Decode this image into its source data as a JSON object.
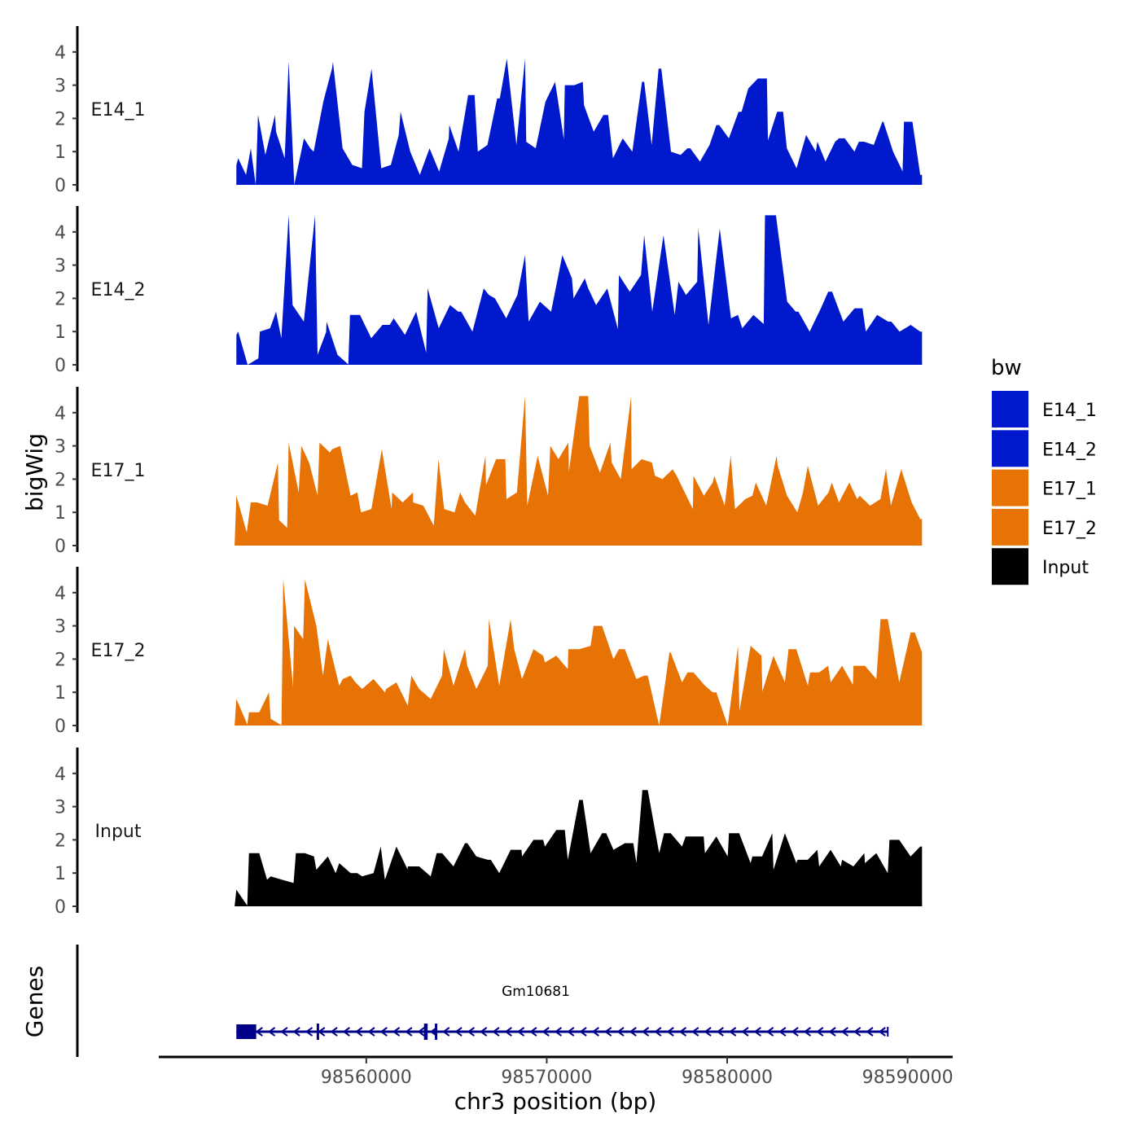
{
  "chart_data": {
    "type": "area",
    "title": "",
    "ylabel": "bigWig",
    "genes_label": "Genes",
    "xlabel": "chr3 position (bp)",
    "xlim": [
      98548500,
      98592500
    ],
    "data_xrange": [
      98552800,
      98590800
    ],
    "ylim": [
      0,
      4.8
    ],
    "y_ticks": [
      0,
      1,
      2,
      3,
      4
    ],
    "x_ticks": [
      98560000,
      98570000,
      98580000,
      98590000
    ],
    "x_tick_labels": [
      "98560000",
      "98570000",
      "98580000",
      "98590000"
    ],
    "legend": {
      "title": "bw",
      "position": "right",
      "entries": [
        {
          "label": "E14_1",
          "color": "#0019CD"
        },
        {
          "label": "E14_2",
          "color": "#0019CD"
        },
        {
          "label": "E17_1",
          "color": "#E87305"
        },
        {
          "label": "E17_2",
          "color": "#E87305"
        },
        {
          "label": "Input",
          "color": "#000000"
        }
      ]
    },
    "series": [
      {
        "name": "E14_1",
        "color": "#0019CD",
        "peaks": [
          [
            98552900,
            0.8
          ],
          [
            98553600,
            1.1
          ],
          [
            98554000,
            2.1
          ],
          [
            98555000,
            1.6
          ],
          [
            98555700,
            3.7
          ],
          [
            98556900,
            1.1
          ],
          [
            98558100,
            3.5
          ],
          [
            98559900,
            2.2
          ],
          [
            98561800,
            1.5
          ],
          [
            98564600,
            1.8
          ],
          [
            98566000,
            2.7
          ],
          [
            98567400,
            2.6
          ],
          [
            98568800,
            3.8
          ],
          [
            98571000,
            3.0
          ],
          [
            98572000,
            3.1
          ],
          [
            98573400,
            2.1
          ],
          [
            98575400,
            3.1
          ],
          [
            98576200,
            3.5
          ],
          [
            98577800,
            1.1
          ],
          [
            98579400,
            1.8
          ],
          [
            98580800,
            2.2
          ],
          [
            98582200,
            3.2
          ],
          [
            98583100,
            2.2
          ],
          [
            98585000,
            1.3
          ],
          [
            98586200,
            1.4
          ],
          [
            98587300,
            1.3
          ],
          [
            98588600,
            1.9
          ],
          [
            98589800,
            1.9
          ],
          [
            98590700,
            0.3
          ]
        ],
        "values": [
          0.6,
          0.3,
          0.0,
          0.9,
          2.1,
          0.8,
          0.0,
          1.4,
          1.0,
          2.5,
          3.7,
          1.1,
          0.6,
          0.5,
          3.5,
          0.5,
          0.6,
          2.2,
          1.0,
          0.3,
          1.1,
          0.4,
          1.4,
          1.0,
          2.7,
          1.0,
          1.2,
          2.6,
          3.8,
          1.2,
          1.3,
          1.1,
          2.5,
          3.1,
          1.2,
          3.0,
          2.4,
          1.6,
          2.1,
          0.8,
          1.4,
          1.0,
          3.1,
          1.2,
          3.5,
          1.0,
          0.9,
          1.1,
          0.7,
          1.2,
          1.8,
          1.4,
          2.2,
          2.9,
          3.2,
          1.3,
          2.2,
          1.1,
          0.5,
          1.5,
          1.0,
          0.7,
          1.3,
          1.4,
          1.0,
          1.3,
          1.2,
          1.9,
          1.0,
          0.4,
          1.9,
          0.3
        ]
      },
      {
        "name": "E14_2",
        "color": "#0019CD",
        "peaks": [
          [
            98552900,
            1.0
          ],
          [
            98554100,
            1.0
          ],
          [
            98555000,
            1.6
          ],
          [
            98555700,
            4.5
          ],
          [
            98557300,
            0.3
          ],
          [
            98557800,
            1.3
          ],
          [
            98559100,
            1.5
          ],
          [
            98561300,
            1.2
          ],
          [
            98563400,
            2.3
          ],
          [
            98565100,
            1.6
          ],
          [
            98566800,
            2.1
          ],
          [
            98568800,
            3.3
          ],
          [
            98571400,
            2.6
          ],
          [
            98572300,
            2.3
          ],
          [
            98574000,
            2.7
          ],
          [
            98575400,
            3.9
          ],
          [
            98577300,
            2.5
          ],
          [
            98578400,
            4.1
          ],
          [
            98580600,
            1.5
          ],
          [
            98582100,
            4.5
          ],
          [
            98583800,
            1.6
          ],
          [
            98585600,
            2.2
          ],
          [
            98587500,
            1.7
          ],
          [
            98589100,
            1.3
          ],
          [
            98590700,
            1.0
          ]
        ],
        "values": [
          0.9,
          0.0,
          0.2,
          1.1,
          0.8,
          1.8,
          1.3,
          4.5,
          1.0,
          0.3,
          0.0,
          1.5,
          0.8,
          1.2,
          1.4,
          0.9,
          1.6,
          0.2,
          1.1,
          1.8,
          1.6,
          1.0,
          2.3,
          2.0,
          1.4,
          2.1,
          1.3,
          1.9,
          1.6,
          3.3,
          2.0,
          2.6,
          1.8,
          2.3,
          1.0,
          2.2,
          2.7,
          1.6,
          3.9,
          1.5,
          2.1,
          2.5,
          1.2,
          4.1,
          1.4,
          1.1,
          1.5,
          1.2,
          4.5,
          1.9,
          1.6,
          1.0,
          1.7,
          2.2,
          1.3,
          1.7,
          1.0,
          1.5,
          1.3,
          1.0,
          1.2,
          1.0
        ]
      },
      {
        "name": "E17_1",
        "color": "#E87305",
        "peaks": [
          [
            98552800,
            1.5
          ],
          [
            98553600,
            1.3
          ],
          [
            98555100,
            2.5
          ],
          [
            98555700,
            3.1
          ],
          [
            98556400,
            3.0
          ],
          [
            98557300,
            1.5
          ],
          [
            98558100,
            2.9
          ],
          [
            98559500,
            1.6
          ],
          [
            98561400,
            1.1
          ],
          [
            98562600,
            1.3
          ],
          [
            98564000,
            2.6
          ],
          [
            98565200,
            1.6
          ],
          [
            98566600,
            2.7
          ],
          [
            98567700,
            2.6
          ],
          [
            98568800,
            4.5
          ],
          [
            98570200,
            3.0
          ],
          [
            98571200,
            3.1
          ],
          [
            98572300,
            4.5
          ],
          [
            98573600,
            2.5
          ],
          [
            98574700,
            2.3
          ],
          [
            98576000,
            2.1
          ],
          [
            98577200,
            2.1
          ],
          [
            98578100,
            1.1
          ],
          [
            98579200,
            1.9
          ],
          [
            98580200,
            2.7
          ],
          [
            98581400,
            1.5
          ],
          [
            98582800,
            2.4
          ],
          [
            98584200,
            1.6
          ],
          [
            98585800,
            1.9
          ],
          [
            98587200,
            1.4
          ],
          [
            98588800,
            2.3
          ],
          [
            98590700,
            0.8
          ]
        ],
        "values": [
          1.5,
          0.4,
          1.3,
          1.2,
          0.8,
          0.5,
          1.6,
          2.5,
          3.1,
          2.8,
          3.0,
          1.5,
          1.0,
          1.1,
          2.9,
          1.6,
          1.3,
          1.6,
          1.2,
          0.6,
          1.1,
          1.0,
          1.3,
          0.9,
          1.8,
          2.6,
          1.4,
          1.6,
          1.2,
          2.7,
          1.5,
          2.6,
          2.2,
          4.5,
          3.0,
          2.2,
          3.1,
          2.0,
          4.5,
          2.6,
          2.5,
          2.0,
          2.3,
          1.7,
          2.1,
          1.5,
          2.1,
          1.2,
          1.1,
          1.4,
          1.9,
          1.2,
          2.7,
          1.5,
          1.0,
          2.4,
          1.2,
          1.6,
          1.3,
          1.9,
          1.5,
          1.2,
          1.4,
          1.2,
          2.3,
          1.3,
          0.8
        ]
      },
      {
        "name": "E17_2",
        "color": "#E87305",
        "peaks": [
          [
            98552800,
            0.8
          ],
          [
            98553500,
            0.4
          ],
          [
            98554600,
            1.0
          ],
          [
            98555400,
            4.4
          ],
          [
            98556000,
            3.0
          ],
          [
            98556500,
            2.6
          ],
          [
            98557600,
            1.5
          ],
          [
            98558700,
            1.4
          ],
          [
            98559400,
            1.3
          ],
          [
            98561100,
            1.1
          ],
          [
            98562500,
            1.5
          ],
          [
            98564300,
            2.3
          ],
          [
            98565600,
            1.8
          ],
          [
            98566800,
            3.2
          ],
          [
            98568200,
            2.3
          ],
          [
            98569800,
            2.1
          ],
          [
            98571200,
            2.3
          ],
          [
            98572600,
            3.0
          ],
          [
            98574000,
            2.3
          ],
          [
            98575400,
            1.5
          ],
          [
            98576800,
            2.2
          ],
          [
            98577800,
            1.6
          ],
          [
            98579200,
            1.0
          ],
          [
            98580600,
            2.4
          ],
          [
            98581900,
            2.1
          ],
          [
            98583400,
            2.3
          ],
          [
            98584600,
            1.6
          ],
          [
            98585600,
            1.8
          ],
          [
            98587000,
            1.8
          ],
          [
            98588500,
            3.2
          ],
          [
            98590400,
            2.8
          ]
        ],
        "values": [
          0.8,
          0.0,
          0.4,
          0.2,
          0.0,
          1.0,
          4.4,
          3.0,
          2.6,
          1.2,
          1.5,
          1.1,
          1.4,
          1.0,
          1.3,
          0.6,
          1.1,
          0.8,
          1.5,
          1.2,
          2.3,
          1.1,
          1.8,
          1.2,
          3.2,
          1.4,
          2.3,
          1.9,
          2.1,
          1.7,
          2.3,
          2.4,
          3.0,
          2.0,
          2.3,
          1.4,
          1.5,
          0.0,
          2.2,
          1.3,
          1.6,
          1.2,
          1.0,
          0.0,
          0.4,
          2.4,
          1.0,
          2.1,
          1.3,
          2.3,
          1.2,
          1.6,
          1.3,
          1.8,
          1.2,
          1.8,
          1.4,
          3.2,
          1.3,
          2.8,
          2.2
        ]
      },
      {
        "name": "Input",
        "color": "#000000",
        "peaks": [
          [
            98552800,
            0.5
          ],
          [
            98553500,
            1.6
          ],
          [
            98554500,
            0.8
          ],
          [
            98556100,
            1.6
          ],
          [
            98557100,
            1.5
          ],
          [
            98558300,
            1.0
          ],
          [
            98559500,
            1.0
          ],
          [
            98560800,
            1.8
          ],
          [
            98562300,
            1.2
          ],
          [
            98563900,
            1.6
          ],
          [
            98565600,
            1.9
          ],
          [
            98566900,
            1.4
          ],
          [
            98568600,
            1.7
          ],
          [
            98569800,
            2.0
          ],
          [
            98571000,
            2.3
          ],
          [
            98572000,
            3.2
          ],
          [
            98573300,
            2.2
          ],
          [
            98574800,
            1.9
          ],
          [
            98575300,
            3.5
          ],
          [
            98576500,
            2.2
          ],
          [
            98577700,
            2.1
          ],
          [
            98578700,
            2.1
          ],
          [
            98580100,
            2.2
          ],
          [
            98581400,
            1.5
          ],
          [
            98582500,
            2.2
          ],
          [
            98583900,
            1.4
          ],
          [
            98585000,
            1.7
          ],
          [
            98586300,
            1.2
          ],
          [
            98587600,
            1.6
          ],
          [
            98589000,
            2.0
          ],
          [
            98590700,
            1.8
          ]
        ],
        "values": [
          0.5,
          0.0,
          1.6,
          0.9,
          0.8,
          0.7,
          1.6,
          1.1,
          1.5,
          1.3,
          1.0,
          0.9,
          1.0,
          0.8,
          1.8,
          1.1,
          1.2,
          0.9,
          1.6,
          1.2,
          1.9,
          1.5,
          1.4,
          1.0,
          1.7,
          1.5,
          2.0,
          1.8,
          2.3,
          1.4,
          3.2,
          1.6,
          2.2,
          1.7,
          1.9,
          1.3,
          3.5,
          1.6,
          2.2,
          1.8,
          2.1,
          1.6,
          2.1,
          1.5,
          2.2,
          1.3,
          1.5,
          1.1,
          2.2,
          1.3,
          1.4,
          1.2,
          1.7,
          1.4,
          1.2,
          1.3,
          1.6,
          1.0,
          2.0,
          1.5,
          1.8
        ]
      }
    ],
    "gene": {
      "name": "Gm10681",
      "color": "#00008B",
      "start": 98552800,
      "end": 98588900,
      "strand": "-",
      "exons": [
        [
          98552800,
          98553900
        ],
        [
          98557250,
          98557300
        ],
        [
          98563200,
          98563400
        ],
        [
          98563800,
          98563850
        ]
      ]
    }
  }
}
